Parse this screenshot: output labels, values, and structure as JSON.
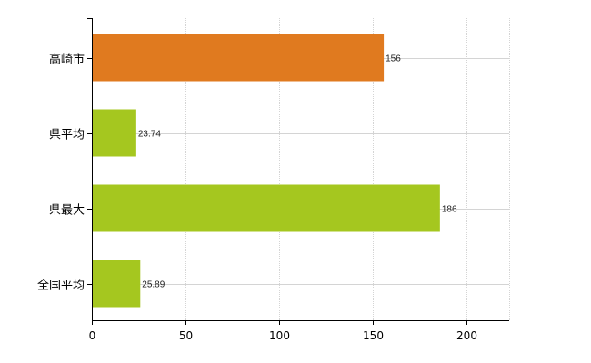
{
  "chart_data": {
    "type": "bar",
    "orientation": "horizontal",
    "title": "",
    "xlabel": "",
    "ylabel": "",
    "categories": [
      "高崎市",
      "県平均",
      "県最大",
      "全国平均"
    ],
    "values": [
      156,
      23.74,
      186,
      25.89
    ],
    "value_labels": [
      "156",
      "23.74",
      "186",
      "25.89"
    ],
    "bar_colors": [
      "#e07a1f",
      "#a5c71f",
      "#a5c71f",
      "#a5c71f"
    ],
    "xlim": [
      0,
      223
    ],
    "xticks": [
      0,
      50,
      100,
      150,
      200
    ],
    "xtick_labels": [
      "0",
      "50",
      "100",
      "150",
      "200"
    ],
    "grid": true,
    "legend": "none"
  },
  "colors": {
    "highlight": "#e07a1f",
    "default": "#a5c71f",
    "grid": "#d4d4d4",
    "axis": "#000000"
  }
}
